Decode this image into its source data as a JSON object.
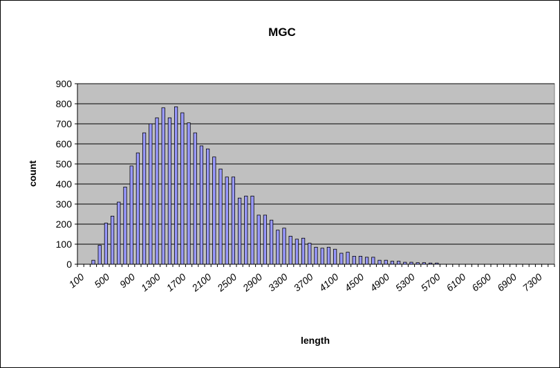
{
  "chart_data": {
    "type": "bar",
    "title": "MGC",
    "xlabel": "length",
    "ylabel": "count",
    "ylim": [
      0,
      900
    ],
    "yticks": [
      "0",
      "100",
      "200",
      "300",
      "400",
      "500",
      "600",
      "700",
      "800",
      "900"
    ],
    "xtick_labels": [
      "100",
      "500",
      "900",
      "1300",
      "1700",
      "2100",
      "2500",
      "2900",
      "3300",
      "3700",
      "4100",
      "4500",
      "4900",
      "5300",
      "5700",
      "6100",
      "6500",
      "6900",
      "7300"
    ],
    "x": [
      100,
      200,
      300,
      400,
      500,
      600,
      700,
      800,
      900,
      1000,
      1100,
      1200,
      1300,
      1400,
      1500,
      1600,
      1700,
      1800,
      1900,
      2000,
      2100,
      2200,
      2300,
      2400,
      2500,
      2600,
      2700,
      2800,
      2900,
      3000,
      3100,
      3200,
      3300,
      3400,
      3500,
      3600,
      3700,
      3800,
      3900,
      4000,
      4100,
      4200,
      4300,
      4400,
      4500,
      4600,
      4700,
      4800,
      4900,
      5000,
      5100,
      5200,
      5300,
      5400,
      5500,
      5600,
      5700,
      5800,
      5900,
      6000,
      6100,
      6200,
      6300,
      6400,
      6500,
      6600,
      6700,
      6800,
      6900,
      7000,
      7100,
      7200,
      7300,
      7400,
      7500
    ],
    "values": [
      0,
      0,
      20,
      95,
      205,
      240,
      310,
      385,
      490,
      555,
      655,
      700,
      730,
      780,
      730,
      785,
      755,
      705,
      655,
      590,
      575,
      535,
      475,
      435,
      435,
      330,
      340,
      340,
      245,
      245,
      220,
      170,
      180,
      140,
      125,
      130,
      105,
      85,
      80,
      85,
      75,
      55,
      60,
      40,
      40,
      35,
      35,
      20,
      20,
      15,
      15,
      10,
      10,
      8,
      8,
      6,
      6,
      0,
      0,
      0,
      0,
      0,
      0,
      0,
      0,
      0,
      0,
      0,
      0,
      0,
      0,
      0,
      0,
      0,
      0
    ],
    "colors": {
      "plot_bg": "#c0c0c0",
      "bar_fill": "#9999ff",
      "bar_stroke": "#000000",
      "gridline": "#000000"
    },
    "grid": true,
    "legend": "none"
  }
}
